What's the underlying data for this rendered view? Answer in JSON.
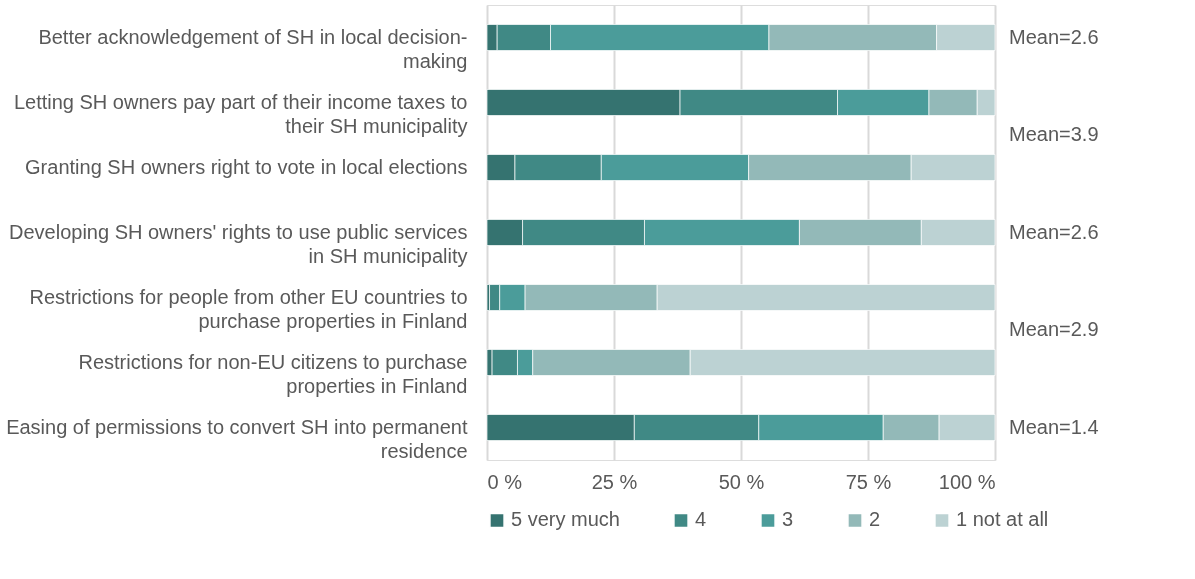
{
  "chart_data": {
    "type": "bar",
    "orientation": "horizontal",
    "stacked": true,
    "categories": [
      "Better acknowledgement of SH in local decision-making",
      "Letting SH owners pay part of their income taxes to their SH municipality",
      "Granting SH owners right to vote in local elections",
      "Developing SH owners' rights to use public services in SH municipality",
      "Restrictions for people from other EU countries to purchase properties in Finland",
      "Restrictions for non-EU citizens to purchase properties in Finland",
      "Easing of permissions to convert SH into permanent residence"
    ],
    "series": [
      {
        "name": "5 very much",
        "color": "#357370",
        "values": [
          2,
          38,
          5.5,
          7,
          0.5,
          1,
          29
        ]
      },
      {
        "name": "4",
        "color": "#408985",
        "values": [
          10.5,
          31,
          17,
          24,
          2,
          5,
          24.5
        ]
      },
      {
        "name": "3",
        "color": "#4b9c9a",
        "values": [
          43,
          18,
          29,
          30.5,
          5,
          3,
          24.5
        ]
      },
      {
        "name": "2",
        "color": "#93b9b8",
        "values": [
          33,
          9.5,
          32,
          24,
          26,
          31,
          11
        ]
      },
      {
        "name": "1 not at all",
        "color": "#bcd2d3",
        "values": [
          11.5,
          3.5,
          16.5,
          14.5,
          66.5,
          60,
          11
        ]
      }
    ],
    "xlim": [
      0,
      100
    ],
    "xticks": [
      {
        "value": 0,
        "label": "0 %"
      },
      {
        "value": 25,
        "label": "25 %"
      },
      {
        "value": 50,
        "label": "50 %"
      },
      {
        "value": 75,
        "label": "75 %"
      },
      {
        "value": 100,
        "label": "100 %"
      }
    ],
    "grid": "x",
    "legend": "bottom",
    "annotations": [
      "Mean=2.6",
      "Mean=3.9",
      "Mean=2.6",
      "Mean=2.9",
      "Mean=1.4"
    ]
  }
}
